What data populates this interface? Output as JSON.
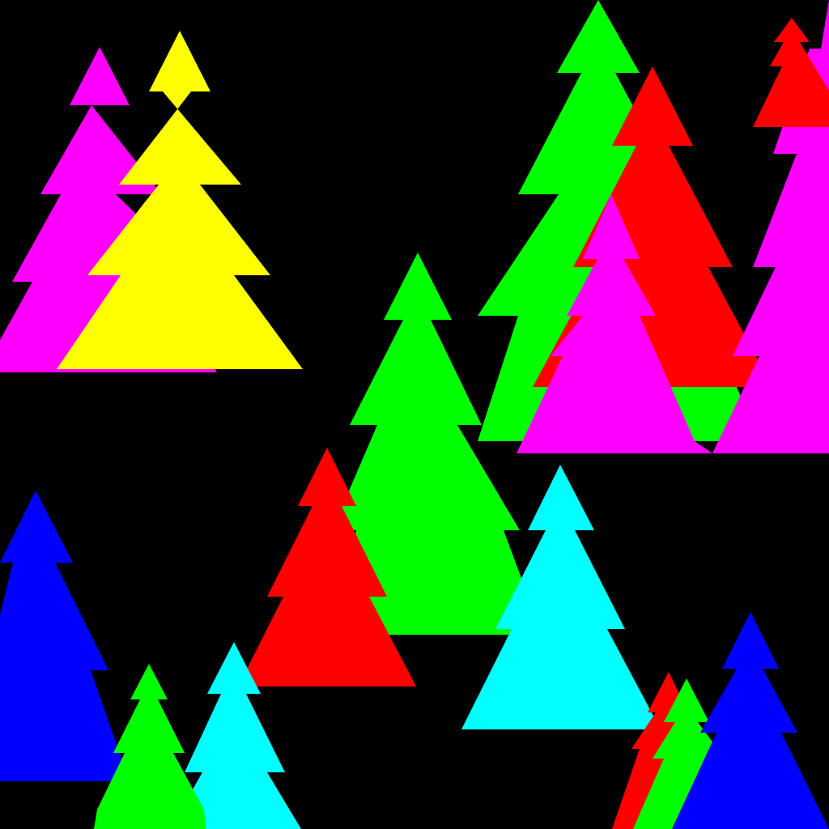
{
  "scene": {
    "background": "#000000",
    "palette": {
      "magenta": "#ff00ff",
      "yellow": "#ffff00",
      "green": "#00ff00",
      "red": "#ff0000",
      "blue": "#0000ff",
      "cyan": "#00ffff"
    }
  }
}
